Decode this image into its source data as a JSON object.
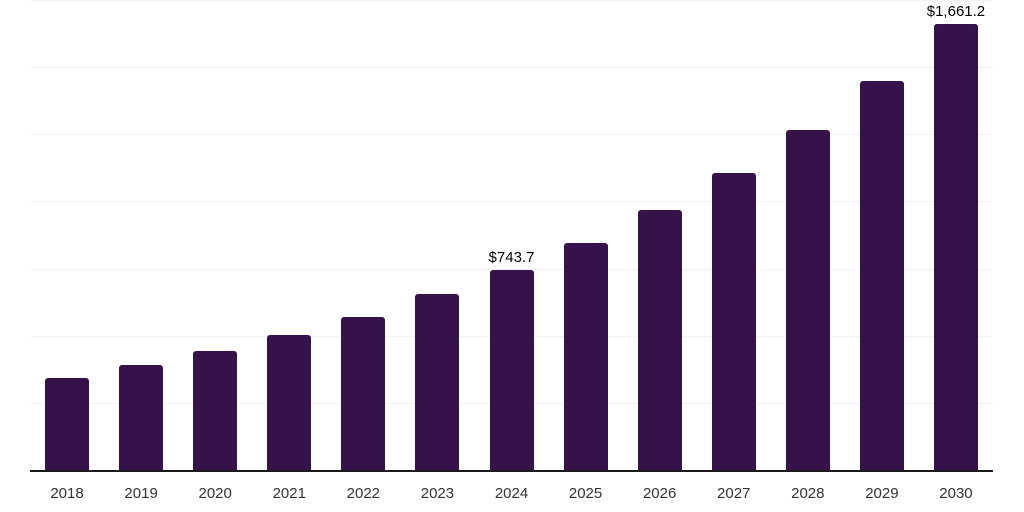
{
  "chart_data": {
    "type": "bar",
    "title": "",
    "xlabel": "",
    "ylabel": "",
    "categories": [
      "2018",
      "2019",
      "2020",
      "2021",
      "2022",
      "2023",
      "2024",
      "2025",
      "2026",
      "2027",
      "2028",
      "2029",
      "2030"
    ],
    "values": [
      342,
      391,
      442,
      501,
      568,
      654,
      743.7,
      847,
      969,
      1107,
      1267,
      1449,
      1661.2
    ],
    "labeled_points": [
      {
        "category": "2024",
        "label": "$743.7"
      },
      {
        "category": "2030",
        "label": "$1,661.2"
      }
    ],
    "ylim": [
      0,
      1750
    ],
    "gridline_step": 250,
    "grid": "horizontal",
    "legend": "none",
    "y_axis_labels_visible": false,
    "colors": {
      "bar": "#35134A",
      "gridline": "#F2F2F2",
      "axis": "#1A1A1A",
      "tick_label": "#333333",
      "data_label": "#000000",
      "background": "#FFFFFF"
    }
  }
}
